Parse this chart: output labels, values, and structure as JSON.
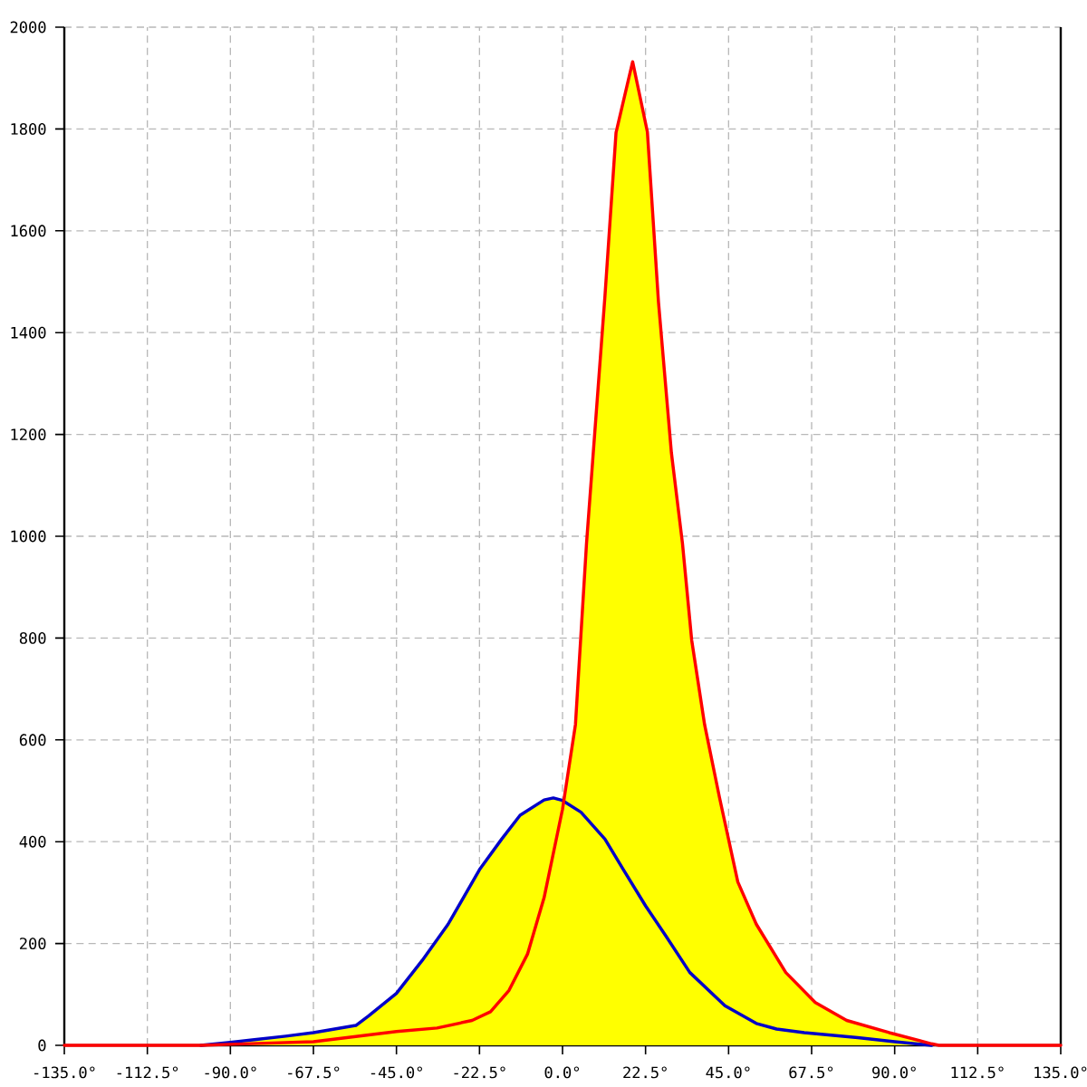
{
  "chart_data": {
    "type": "line",
    "xlim": [
      -135,
      135
    ],
    "ylim": [
      0,
      2000
    ],
    "xticks": [
      {
        "value": -135,
        "label": "-135.0°"
      },
      {
        "value": -112.5,
        "label": "-112.5°"
      },
      {
        "value": -90,
        "label": "-90.0°"
      },
      {
        "value": -67.5,
        "label": "-67.5°"
      },
      {
        "value": -45,
        "label": "-45.0°"
      },
      {
        "value": -22.5,
        "label": "-22.5°"
      },
      {
        "value": 0,
        "label": "0.0°"
      },
      {
        "value": 22.5,
        "label": "22.5°"
      },
      {
        "value": 45,
        "label": "45.0°"
      },
      {
        "value": 67.5,
        "label": "67.5°"
      },
      {
        "value": 90,
        "label": "90.0°"
      },
      {
        "value": 112.5,
        "label": "112.5°"
      },
      {
        "value": 135,
        "label": "135.0°"
      }
    ],
    "yticks": [
      0,
      200,
      400,
      600,
      800,
      1000,
      1200,
      1400,
      1600,
      1800,
      2000
    ],
    "grid": true,
    "marker": "none",
    "series": [
      {
        "type": "area",
        "color": "#ffff00",
        "x": [
          -98,
          -90,
          -83.5,
          -75,
          -67.5,
          -56,
          -52.5,
          -45,
          -38,
          -31,
          -22.5,
          -16.5,
          -11.5,
          -5,
          -2.5,
          0.4,
          3.5,
          6.5,
          11.5,
          14.5,
          19,
          23,
          26,
          29.5,
          32.5,
          35,
          38.5,
          42.5,
          47.5,
          52.5,
          60.5,
          68.5,
          77,
          88.5,
          100,
          102
        ],
        "values": [
          0,
          6,
          11,
          18,
          25,
          39,
          58,
          102,
          167,
          238,
          345,
          405,
          452,
          482,
          486,
          480,
          630,
          986,
          1472,
          1793,
          1932,
          1794,
          1460,
          1164,
          986,
          796,
          630,
          488,
          321,
          238,
          143,
          84,
          49,
          25,
          3,
          0
        ]
      },
      {
        "color": "#0000c8",
        "x": [
          -98,
          -90,
          -83.5,
          -75,
          -67.5,
          -56,
          -52.5,
          -45,
          -38,
          -31,
          -22.5,
          -16.5,
          -11.5,
          -5,
          -2.5,
          0,
          5,
          11.5,
          16.5,
          22.5,
          28,
          34.5,
          44,
          52.5,
          58,
          65.5,
          80,
          90,
          100
        ],
        "values": [
          0,
          6,
          11,
          18,
          25,
          39,
          58,
          102,
          167,
          238,
          345,
          405,
          452,
          482,
          486,
          481,
          458,
          405,
          345,
          274,
          215,
          143,
          78,
          43,
          32,
          25,
          15,
          7,
          0
        ]
      },
      {
        "color": "#ff0000",
        "x": [
          -135,
          -98,
          -90,
          -67.5,
          -54,
          -45,
          -34,
          -24.5,
          -19.5,
          -14.5,
          -9.5,
          -5,
          0,
          3.5,
          6.5,
          11.5,
          14.5,
          19,
          23,
          26,
          29.5,
          32.5,
          35,
          38.5,
          42.5,
          47.5,
          52.5,
          60.5,
          68.5,
          77,
          88.5,
          100,
          102,
          135
        ],
        "values": [
          0,
          0,
          2,
          7,
          19,
          27,
          34,
          49,
          66,
          108,
          179,
          290,
          464,
          630,
          986,
          1472,
          1793,
          1932,
          1794,
          1460,
          1164,
          986,
          796,
          630,
          488,
          321,
          238,
          143,
          84,
          49,
          25,
          3,
          0,
          0
        ]
      }
    ]
  }
}
